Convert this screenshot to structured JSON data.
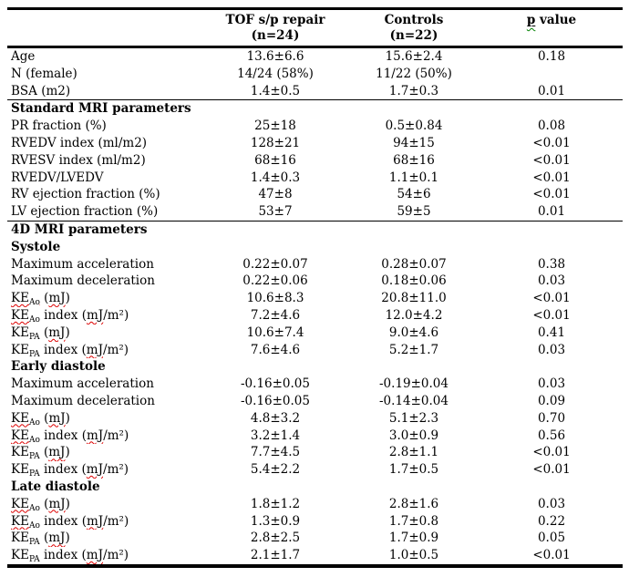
{
  "colors": {
    "text": "#000000",
    "background": "#ffffff",
    "rule": "#000000",
    "spellcheck_red": "#dd0000",
    "grammar_green": "#008000"
  },
  "table": {
    "header": {
      "col1": "",
      "col2": {
        "line1": "TOF s/p repair",
        "line2": "(n=24)"
      },
      "col3": {
        "line1": "Controls",
        "line2": "(n=22)"
      },
      "p_segments": [
        {
          "cls": "u",
          "children": [
            {
              "cls": "gr",
              "text": "p"
            }
          ]
        },
        {
          "text": " value"
        }
      ]
    },
    "rows": [
      {
        "type": "data",
        "label": "Age",
        "values": [
          "13.6±6.6",
          "15.6±2.4",
          "0.18"
        ]
      },
      {
        "type": "data",
        "label": "N (female)",
        "values": [
          "14/24 (58%)",
          "11/22 (50%)",
          ""
        ]
      },
      {
        "type": "data",
        "label": "BSA (m2)",
        "values": [
          "1.4±0.5",
          "1.7±0.3",
          "0.01"
        ]
      },
      {
        "type": "section",
        "label": "Standard MRI parameters",
        "divider": true
      },
      {
        "type": "data",
        "label": "PR fraction (%)",
        "values": [
          "25±18",
          "0.5±0.84",
          "0.08"
        ]
      },
      {
        "type": "data",
        "label": "RVEDV index (ml/m2)",
        "values": [
          "128±21",
          "94±15",
          "<0.01"
        ]
      },
      {
        "type": "data",
        "label": "RVESV index (ml/m2)",
        "values": [
          "68±16",
          "68±16",
          "<0.01"
        ]
      },
      {
        "type": "data",
        "label": "RVEDV/LVEDV",
        "values": [
          "1.4±0.3",
          "1.1±0.1",
          "<0.01"
        ]
      },
      {
        "type": "data",
        "label": "RV ejection fraction (%)",
        "values": [
          "47±8",
          "54±6",
          "<0.01"
        ]
      },
      {
        "type": "data",
        "label": "LV ejection fraction (%)",
        "values": [
          "53±7",
          "59±5",
          "0.01"
        ]
      },
      {
        "type": "section",
        "label": "4D MRI parameters",
        "divider": true
      },
      {
        "type": "section",
        "label": "Systole"
      },
      {
        "type": "data",
        "label": "Maximum acceleration",
        "values": [
          "0.22±0.07",
          "0.28±0.07",
          "0.38"
        ]
      },
      {
        "type": "data",
        "label": "Maximum deceleration",
        "values": [
          "0.22±0.06",
          "0.18±0.06",
          "0.03"
        ]
      },
      {
        "type": "data",
        "segments": [
          {
            "cls": "sq",
            "children": [
              {
                "text": "KE"
              },
              {
                "cls": "sub",
                "text": "Ao"
              }
            ]
          },
          {
            "text": " ("
          },
          {
            "cls": "sq",
            "text": "mJ"
          },
          {
            "text": ")"
          }
        ],
        "values": [
          "10.6±8.3",
          "20.8±11.0",
          "<0.01"
        ]
      },
      {
        "type": "data",
        "segments": [
          {
            "cls": "sq",
            "children": [
              {
                "text": "KE"
              },
              {
                "cls": "sub",
                "text": "Ao"
              }
            ]
          },
          {
            "text": " index ("
          },
          {
            "cls": "sq",
            "text": "mJ"
          },
          {
            "text": "/m²)"
          }
        ],
        "values": [
          "7.2±4.6",
          "12.0±4.2",
          "<0.01"
        ]
      },
      {
        "type": "data",
        "segments": [
          {
            "text": "KE"
          },
          {
            "cls": "sub",
            "text": "PA"
          },
          {
            "text": " ("
          },
          {
            "cls": "sq",
            "text": "mJ"
          },
          {
            "text": ")"
          }
        ],
        "values": [
          "10.6±7.4",
          "9.0±4.6",
          "0.41"
        ]
      },
      {
        "type": "data",
        "segments": [
          {
            "text": "KE"
          },
          {
            "cls": "sub",
            "text": "PA"
          },
          {
            "text": " index ("
          },
          {
            "cls": "sq",
            "text": "mJ"
          },
          {
            "text": "/m²)"
          }
        ],
        "values": [
          "7.6±4.6",
          "5.2±1.7",
          "0.03"
        ]
      },
      {
        "type": "section",
        "label": "Early diastole"
      },
      {
        "type": "data",
        "label": "Maximum acceleration",
        "values": [
          "-0.16±0.05",
          "-0.19±0.04",
          "0.03"
        ]
      },
      {
        "type": "data",
        "label": "Maximum deceleration",
        "values": [
          "-0.16±0.05",
          "-0.14±0.04",
          "0.09"
        ]
      },
      {
        "type": "data",
        "segments": [
          {
            "cls": "sq",
            "children": [
              {
                "text": "KE"
              },
              {
                "cls": "sub",
                "text": "Ao"
              }
            ]
          },
          {
            "text": " ("
          },
          {
            "cls": "sq",
            "text": "mJ"
          },
          {
            "text": ")"
          }
        ],
        "values": [
          "4.8±3.2",
          "5.1±2.3",
          "0.70"
        ]
      },
      {
        "type": "data",
        "segments": [
          {
            "cls": "sq",
            "children": [
              {
                "text": "KE"
              },
              {
                "cls": "sub",
                "text": "Ao"
              }
            ]
          },
          {
            "text": " index ("
          },
          {
            "cls": "sq",
            "text": "mJ"
          },
          {
            "text": "/m²)"
          }
        ],
        "values": [
          "3.2±1.4",
          "3.0±0.9",
          "0.56"
        ]
      },
      {
        "type": "data",
        "segments": [
          {
            "text": "KE"
          },
          {
            "cls": "sub",
            "text": "PA"
          },
          {
            "text": " ("
          },
          {
            "cls": "sq",
            "text": "mJ"
          },
          {
            "text": ")"
          }
        ],
        "values": [
          "7.7±4.5",
          "2.8±1.1",
          "<0.01"
        ]
      },
      {
        "type": "data",
        "segments": [
          {
            "text": "KE"
          },
          {
            "cls": "sub",
            "text": "PA"
          },
          {
            "text": " index ("
          },
          {
            "cls": "sq",
            "text": "mJ"
          },
          {
            "text": "/m²)"
          }
        ],
        "values": [
          "5.4±2.2",
          "1.7±0.5",
          "<0.01"
        ]
      },
      {
        "type": "section",
        "label": "Late diastole"
      },
      {
        "type": "data",
        "segments": [
          {
            "cls": "sq",
            "children": [
              {
                "text": "KE"
              },
              {
                "cls": "sub",
                "text": "Ao"
              }
            ]
          },
          {
            "text": " ("
          },
          {
            "cls": "sq",
            "text": "mJ"
          },
          {
            "text": ")"
          }
        ],
        "values": [
          "1.8±1.2",
          "2.8±1.6",
          "0.03"
        ]
      },
      {
        "type": "data",
        "segments": [
          {
            "cls": "sq",
            "children": [
              {
                "text": "KE"
              },
              {
                "cls": "sub",
                "text": "Ao"
              }
            ]
          },
          {
            "text": " index ("
          },
          {
            "cls": "sq",
            "text": "mJ"
          },
          {
            "text": "/m²)"
          }
        ],
        "values": [
          "1.3±0.9",
          "1.7±0.8",
          "0.22"
        ]
      },
      {
        "type": "data",
        "segments": [
          {
            "text": "KE"
          },
          {
            "cls": "sub",
            "text": "PA"
          },
          {
            "text": " ("
          },
          {
            "cls": "sq",
            "text": "mJ"
          },
          {
            "text": ")"
          }
        ],
        "values": [
          "2.8±2.5",
          "1.7±0.9",
          "0.05"
        ]
      },
      {
        "type": "data",
        "segments": [
          {
            "text": "KE"
          },
          {
            "cls": "sub",
            "text": "PA"
          },
          {
            "text": " index ("
          },
          {
            "cls": "sq",
            "text": "mJ"
          },
          {
            "text": "/m²)"
          }
        ],
        "values": [
          "2.1±1.7",
          "1.0±0.5",
          "<0.01"
        ]
      }
    ]
  }
}
